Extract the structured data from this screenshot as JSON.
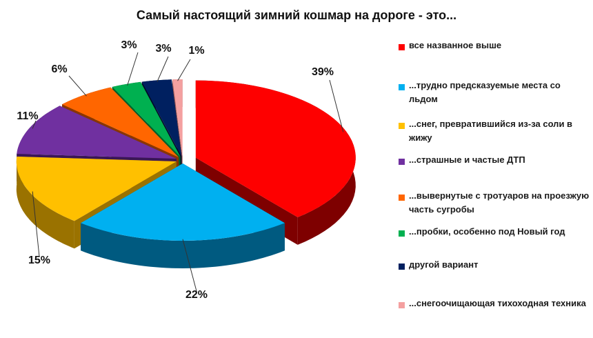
{
  "chart_data": {
    "type": "pie",
    "title": "Самый настоящий зимний кошмар на дороге - это...",
    "legend_position": "right",
    "slices": [
      {
        "label": "все  названное  выше",
        "value": 39,
        "value_label": "39%",
        "color": "#fe0000",
        "dark": "#7e0000"
      },
      {
        "label": "...трудно предсказуемые места со льдом",
        "value": 22,
        "value_label": "22%",
        "color": "#00b0f0",
        "dark": "#005a80"
      },
      {
        "label": "...снег, превратившийся  из-за соли в жижу",
        "value": 15,
        "value_label": "15%",
        "color": "#ffc000",
        "dark": "#9a7200"
      },
      {
        "label": "...страшные и частые ДТП",
        "value": 11,
        "value_label": "11%",
        "color": "#7030a0",
        "dark": "#3a1656"
      },
      {
        "label": "...вывернутые с тротуаров на проезжую часть сугробы",
        "value": 6,
        "value_label": "6%",
        "color": "#ff6600",
        "dark": "#8a3600"
      },
      {
        "label": "...пробки, особенно под Новый год",
        "value": 3,
        "value_label": "3%",
        "color": "#00b050",
        "dark": "#00602a"
      },
      {
        "label": "другой вариант",
        "value": 3,
        "value_label": "3%",
        "color": "#002060",
        "dark": "#000c26"
      },
      {
        "label": "...снегоочищающая  тихоходная техника",
        "value": 1,
        "value_label": "1%",
        "color": "#f4a0a0",
        "dark": "#9a5a5a"
      }
    ]
  }
}
